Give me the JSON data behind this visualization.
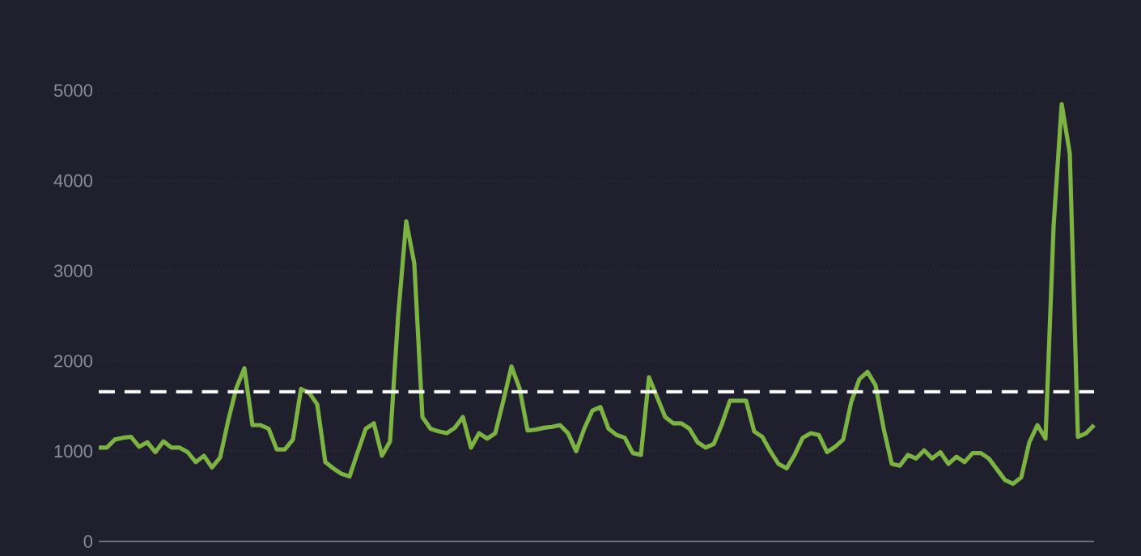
{
  "chart_data": {
    "type": "line",
    "categories": [
      null,
      null,
      null,
      null,
      null,
      null,
      null,
      null,
      null,
      null,
      null,
      null,
      null,
      null,
      null,
      null,
      null,
      null,
      null,
      null,
      null,
      null,
      null,
      null,
      null,
      null,
      null,
      null,
      null,
      null,
      null,
      null,
      null,
      null,
      null,
      null,
      null,
      null,
      null,
      null,
      null,
      null,
      null,
      null,
      null,
      null,
      null,
      null,
      null,
      null,
      null,
      null,
      null,
      null,
      null,
      null,
      null,
      null,
      null,
      null,
      null,
      null,
      null,
      null,
      null,
      null,
      null,
      null,
      null,
      null,
      null,
      null,
      null,
      null,
      null,
      null,
      null,
      null,
      null,
      null,
      null,
      null,
      null,
      null,
      null,
      null,
      null,
      null,
      null,
      null,
      null,
      null,
      null,
      null,
      null,
      null,
      null,
      null,
      null,
      null,
      null,
      null,
      null,
      null,
      null,
      null,
      null,
      null,
      null,
      null,
      null,
      null,
      null,
      null,
      null,
      null,
      null,
      null,
      null,
      null,
      null,
      null,
      null,
      null
    ],
    "series": [
      {
        "color": "#7cb342",
        "values": [
          1040,
          1040,
          1130,
          1150,
          1160,
          1050,
          1100,
          990,
          1110,
          1040,
          1040,
          990,
          880,
          950,
          820,
          930,
          1340,
          1700,
          1920,
          1290,
          1290,
          1250,
          1020,
          1020,
          1130,
          1690,
          1650,
          1520,
          880,
          810,
          750,
          720,
          990,
          1250,
          1310,
          950,
          1110,
          2500,
          3550,
          3080,
          1380,
          1250,
          1220,
          1200,
          1260,
          1380,
          1040,
          1200,
          1140,
          1200,
          1560,
          1940,
          1700,
          1230,
          1240,
          1260,
          1270,
          1290,
          1200,
          1000,
          1250,
          1450,
          1490,
          1250,
          1180,
          1150,
          980,
          960,
          1820,
          1600,
          1380,
          1310,
          1310,
          1250,
          1100,
          1040,
          1080,
          1300,
          1560,
          1560,
          1560,
          1220,
          1160,
          1000,
          860,
          810,
          960,
          1150,
          1200,
          1180,
          990,
          1050,
          1130,
          1550,
          1800,
          1880,
          1730,
          1250,
          860,
          840,
          960,
          920,
          1010,
          920,
          990,
          860,
          940,
          880,
          980,
          980,
          920,
          800,
          680,
          640,
          710,
          1100,
          1290,
          1140,
          3500,
          4850,
          4300,
          1160,
          1200,
          1290
        ]
      }
    ],
    "ylim": [
      0,
      5000
    ],
    "yticks": [
      0,
      1000,
      2000,
      3000,
      4000,
      5000
    ],
    "grid": "y",
    "marker": "none",
    "line_style": "solid",
    "ref_lines": [
      {
        "axis": "y",
        "value": 1660,
        "color": "#ffffff",
        "line_style": "dashed"
      }
    ]
  }
}
